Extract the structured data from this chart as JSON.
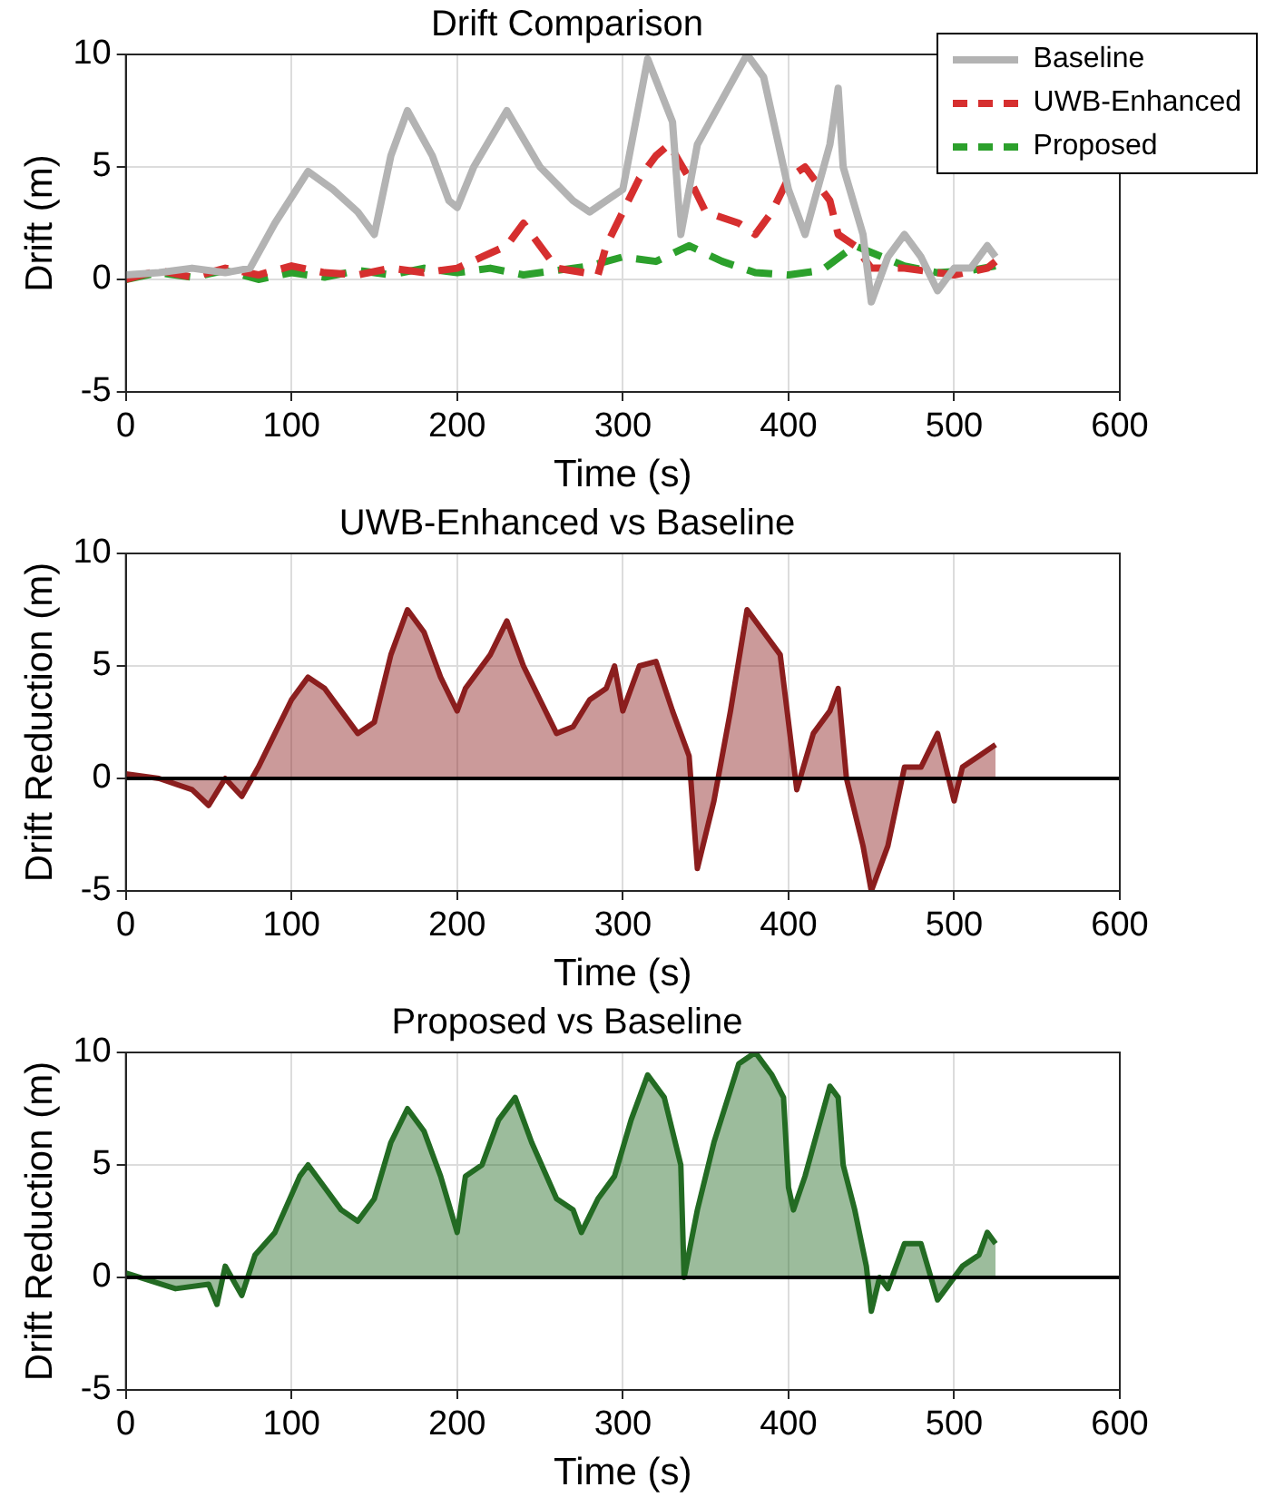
{
  "chart_data": [
    {
      "type": "line",
      "title": "Drift Comparison",
      "xlabel": "Time (s)",
      "ylabel": "Drift (m)",
      "xlim": [
        0,
        600
      ],
      "xticks": [
        0,
        100,
        200,
        300,
        400,
        500,
        600
      ],
      "ylim": [
        -5,
        10
      ],
      "yticks": [
        -5,
        0,
        5,
        10
      ],
      "grid": true,
      "legend": "top right",
      "series": [
        {
          "name": "Baseline",
          "color": "#b3b3b3",
          "line_style": "solid",
          "x": [
            0,
            20,
            40,
            60,
            75,
            90,
            110,
            125,
            140,
            150,
            160,
            170,
            185,
            195,
            200,
            210,
            230,
            250,
            270,
            280,
            300,
            315,
            330,
            335,
            345,
            360,
            375,
            385,
            400,
            410,
            425,
            430,
            433,
            445,
            450,
            460,
            470,
            480,
            490,
            500,
            510,
            520,
            525
          ],
          "values": [
            0.2,
            0.3,
            0.5,
            0.3,
            0.5,
            2.5,
            4.8,
            4,
            3,
            2,
            5.5,
            7.5,
            5.5,
            3.5,
            3.2,
            5,
            7.5,
            5,
            3.5,
            3,
            4,
            9.8,
            7,
            2,
            6,
            8,
            10,
            9,
            4,
            2,
            6,
            8.5,
            5,
            2,
            -1,
            1,
            2,
            1,
            -0.5,
            0.5,
            0.5,
            1.5,
            1
          ]
        },
        {
          "name": "UWB-Enhanced",
          "color": "#d62f2f",
          "line_style": "dashed",
          "x": [
            0,
            20,
            40,
            60,
            80,
            100,
            120,
            140,
            160,
            180,
            200,
            215,
            230,
            240,
            250,
            260,
            285,
            290,
            300,
            310,
            320,
            328,
            340,
            350,
            370,
            380,
            390,
            400,
            410,
            425,
            430,
            440,
            450,
            470,
            500,
            520,
            525
          ],
          "values": [
            0,
            0.4,
            0.1,
            0.5,
            0.2,
            0.6,
            0.3,
            0.2,
            0.5,
            0.3,
            0.5,
            1,
            1.5,
            2.5,
            1.5,
            0.5,
            0.2,
            1.5,
            3,
            4.5,
            5.5,
            6,
            4.5,
            3,
            2.5,
            2,
            3,
            4.5,
            5,
            3.5,
            2,
            1.5,
            0.5,
            0.5,
            0.2,
            0.5,
            0.8
          ]
        },
        {
          "name": "Proposed",
          "color": "#2ca02c",
          "line_style": "dashed",
          "x": [
            0,
            20,
            40,
            60,
            80,
            100,
            120,
            140,
            160,
            180,
            200,
            220,
            240,
            260,
            280,
            300,
            320,
            340,
            360,
            380,
            400,
            420,
            440,
            450,
            470,
            490,
            510,
            525
          ],
          "values": [
            0,
            0.3,
            0.1,
            0.4,
            0,
            0.3,
            0.1,
            0.4,
            0.2,
            0.5,
            0.3,
            0.5,
            0.2,
            0.4,
            0.6,
            1,
            0.8,
            1.5,
            0.8,
            0.3,
            0.2,
            0.4,
            1.5,
            1.2,
            0.6,
            0.3,
            0.4,
            0.6
          ]
        }
      ]
    },
    {
      "type": "area",
      "title": "UWB-Enhanced vs Baseline",
      "xlabel": "Time (s)",
      "ylabel": "Drift Reduction (m)",
      "xlim": [
        0,
        600
      ],
      "xticks": [
        0,
        100,
        200,
        300,
        400,
        500,
        600
      ],
      "ylim": [
        -5,
        10
      ],
      "yticks": [
        -5,
        0,
        5,
        10
      ],
      "grid": true,
      "ref_lines": [
        {
          "axis": "y",
          "value": 0,
          "color": "#000000"
        }
      ],
      "series": [
        {
          "color": "#8b1e1e",
          "x": [
            0,
            20,
            40,
            50,
            60,
            70,
            80,
            90,
            100,
            110,
            120,
            130,
            140,
            150,
            160,
            170,
            180,
            190,
            200,
            205,
            220,
            230,
            240,
            250,
            260,
            270,
            280,
            290,
            295,
            300,
            310,
            320,
            330,
            340,
            345,
            355,
            365,
            375,
            385,
            395,
            405,
            415,
            425,
            430,
            435,
            445,
            450,
            460,
            470,
            480,
            490,
            500,
            505,
            515,
            525
          ],
          "values": [
            0.2,
            0,
            -0.5,
            -1.2,
            0,
            -0.8,
            0.5,
            2,
            3.5,
            4.5,
            4,
            3,
            2,
            2.5,
            5.5,
            7.5,
            6.5,
            4.5,
            3,
            4,
            5.5,
            7,
            5,
            3.5,
            2,
            2.3,
            3.5,
            4,
            5,
            3,
            5,
            5.2,
            3,
            1,
            -4,
            -1,
            3,
            7.5,
            6.5,
            5.5,
            -0.5,
            2,
            3,
            4,
            0,
            -3,
            -5,
            -3,
            0.5,
            0.5,
            2,
            -1,
            0.5,
            1,
            1.5
          ]
        }
      ]
    },
    {
      "type": "area",
      "title": "Proposed vs Baseline",
      "xlabel": "Time (s)",
      "ylabel": "Drift Reduction (m)",
      "xlim": [
        0,
        600
      ],
      "xticks": [
        0,
        100,
        200,
        300,
        400,
        500,
        600
      ],
      "ylim": [
        -5,
        10
      ],
      "yticks": [
        -5,
        0,
        5,
        10
      ],
      "grid": true,
      "ref_lines": [
        {
          "axis": "y",
          "value": 0,
          "color": "#000000"
        }
      ],
      "series": [
        {
          "color": "#236b23",
          "x": [
            0,
            30,
            50,
            55,
            60,
            70,
            78,
            90,
            105,
            110,
            120,
            130,
            140,
            150,
            160,
            170,
            180,
            190,
            200,
            205,
            215,
            225,
            235,
            245,
            260,
            270,
            275,
            285,
            295,
            305,
            315,
            325,
            335,
            337,
            345,
            355,
            370,
            380,
            390,
            397,
            400,
            403,
            410,
            425,
            430,
            433,
            440,
            447,
            450,
            455,
            460,
            470,
            480,
            490,
            495,
            505,
            515,
            520,
            525
          ],
          "values": [
            0.2,
            -0.5,
            -0.3,
            -1.2,
            0.5,
            -0.8,
            1,
            2,
            4.5,
            5,
            4,
            3,
            2.5,
            3.5,
            6,
            7.5,
            6.5,
            4.5,
            2,
            4.5,
            5,
            7,
            8,
            6,
            3.5,
            3,
            2,
            3.5,
            4.5,
            7,
            9,
            8,
            5,
            0,
            3,
            6,
            9.5,
            10,
            9,
            8,
            4,
            3,
            4.5,
            8.5,
            8,
            5,
            3,
            0.5,
            -1.5,
            0,
            -0.5,
            1.5,
            1.5,
            -1,
            -0.5,
            0.5,
            1,
            2,
            1.5
          ]
        }
      ]
    }
  ]
}
